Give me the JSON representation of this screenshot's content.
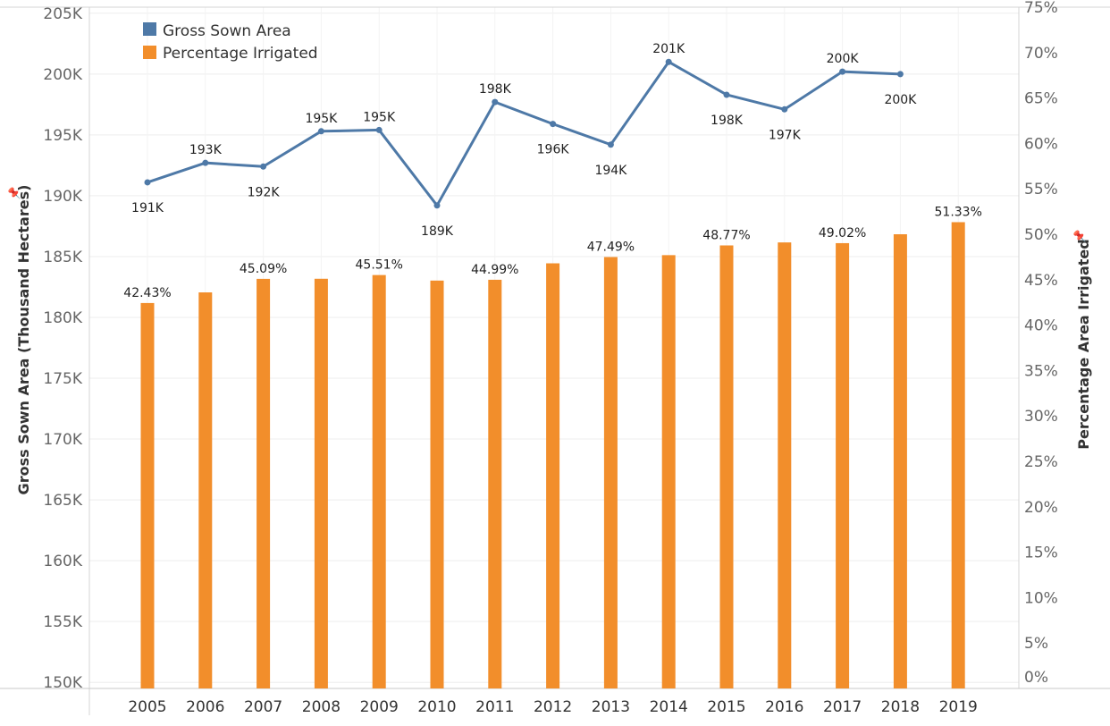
{
  "chart_data": {
    "type": "bar-line-combo",
    "categories": [
      "2005",
      "2006",
      "2007",
      "2008",
      "2009",
      "2010",
      "2011",
      "2012",
      "2013",
      "2014",
      "2015",
      "2016",
      "2017",
      "2018",
      "2019"
    ],
    "line_series": {
      "name": "Gross Sown Area",
      "axis": "left",
      "color": "#4e79a7",
      "values": [
        191.1,
        192.7,
        192.4,
        195.3,
        195.4,
        189.2,
        197.7,
        195.9,
        194.2,
        201.0,
        198.3,
        197.1,
        200.2,
        200.0,
        null
      ],
      "labels": [
        "191K",
        "193K",
        "192K",
        "195K",
        "195K",
        "189K",
        "198K",
        "196K",
        "194K",
        "201K",
        "198K",
        "197K",
        "200K",
        "200K",
        ""
      ],
      "label_pos": [
        "below",
        "above",
        "below",
        "above",
        "above",
        "below",
        "above",
        "below",
        "below",
        "above",
        "below",
        "below",
        "above",
        "below",
        ""
      ]
    },
    "bar_series": {
      "name": "Percentage Irrigated",
      "axis": "right",
      "color": "#f28e2b",
      "values": [
        42.43,
        43.6,
        45.09,
        45.1,
        45.51,
        44.9,
        44.99,
        46.8,
        47.49,
        47.7,
        48.77,
        49.1,
        49.02,
        50.0,
        51.33
      ],
      "labels": [
        "42.43%",
        "",
        "45.09%",
        "",
        "45.51%",
        "",
        "44.99%",
        "",
        "47.49%",
        "",
        "48.77%",
        "",
        "49.02%",
        "",
        "51.33%"
      ]
    },
    "left_axis": {
      "title": "Gross Sown Area (Thousand Hectares)",
      "ylim": [
        149.5,
        205.5
      ],
      "ticks": [
        150,
        155,
        160,
        165,
        170,
        175,
        180,
        185,
        190,
        195,
        200,
        205
      ],
      "tick_labels": [
        "150K",
        "155K",
        "160K",
        "165K",
        "170K",
        "175K",
        "180K",
        "185K",
        "190K",
        "195K",
        "200K",
        "205K"
      ]
    },
    "right_axis": {
      "title": "Percentage Area Irrigated",
      "ylim": [
        0,
        75
      ],
      "ticks": [
        0,
        5,
        10,
        15,
        20,
        25,
        30,
        35,
        40,
        45,
        50,
        55,
        60,
        65,
        70,
        75
      ],
      "tick_labels": [
        "0%",
        "5%",
        "10%",
        "15%",
        "20%",
        "25%",
        "30%",
        "35%",
        "40%",
        "45%",
        "50%",
        "55%",
        "60%",
        "65%",
        "70%",
        "75%"
      ]
    },
    "legend": {
      "position": "top-left",
      "items": [
        {
          "label": "Gross Sown Area",
          "color": "#4e79a7"
        },
        {
          "label": "Percentage Irrigated",
          "color": "#f28e2b"
        }
      ]
    },
    "grid": true
  },
  "icons": {
    "left_pin": "pin-icon",
    "right_pin": "pin-icon"
  }
}
